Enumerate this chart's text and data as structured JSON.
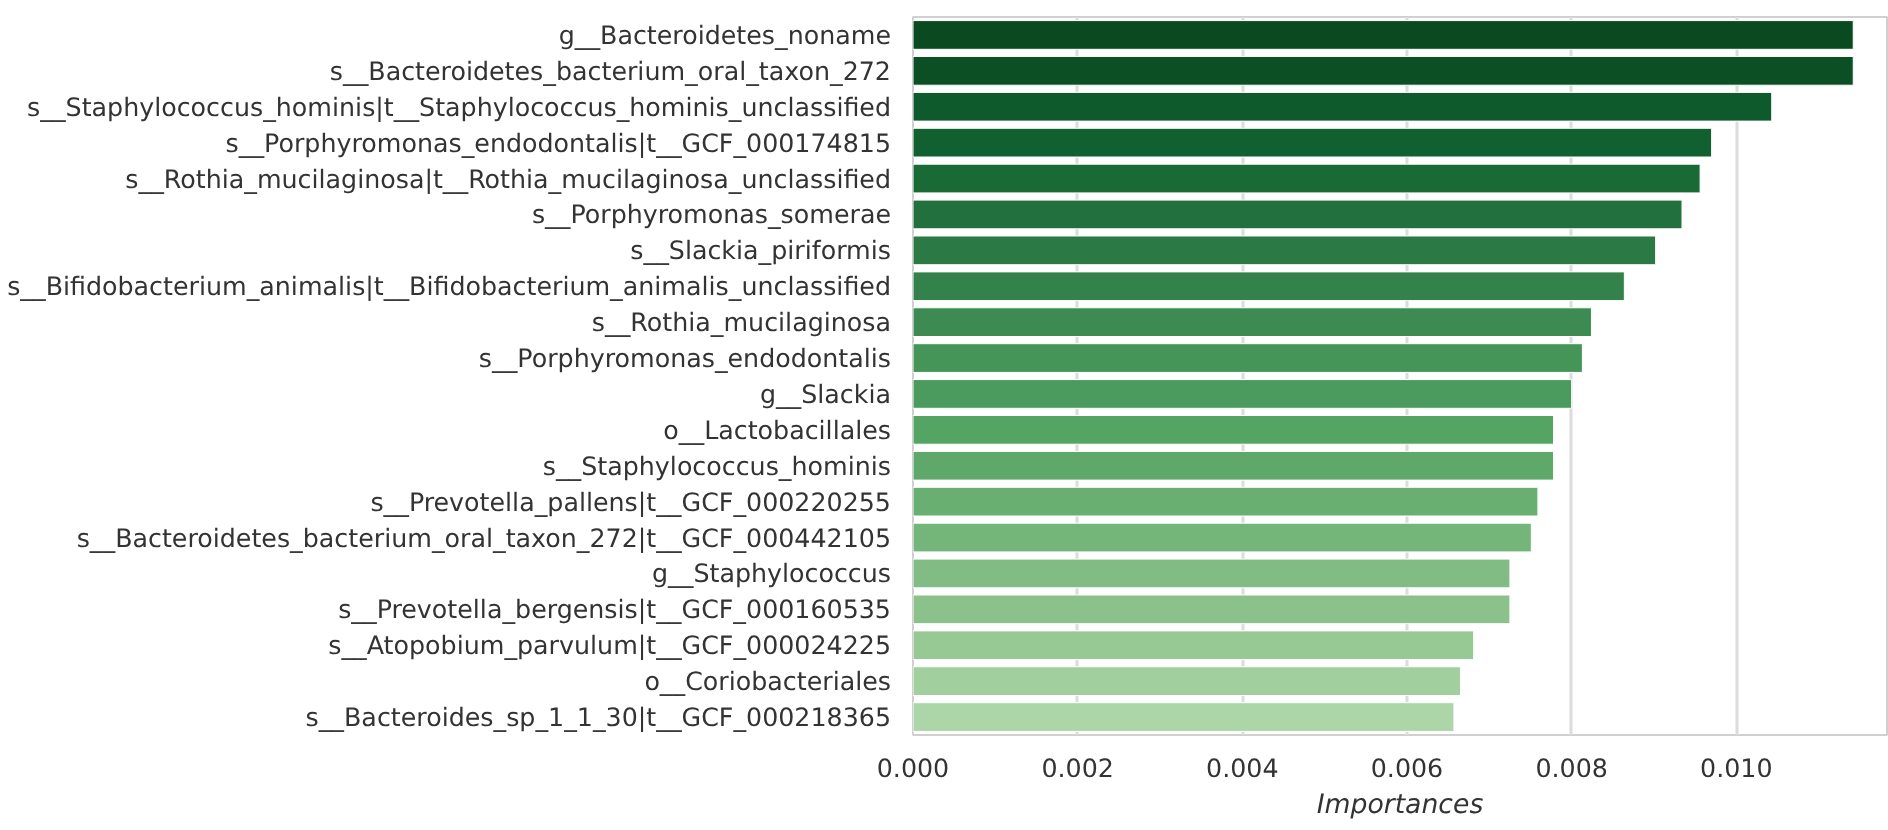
{
  "chart_data": {
    "type": "bar",
    "orientation": "horizontal",
    "xlabel": "Importances",
    "categories": [
      "g__Bacteroidetes_noname",
      "s__Bacteroidetes_bacterium_oral_taxon_272",
      "s__Staphylococcus_hominis|t__Staphylococcus_hominis_unclassified",
      "s__Porphyromonas_endodontalis|t__GCF_000174815",
      "s__Rothia_mucilaginosa|t__Rothia_mucilaginosa_unclassified",
      "s__Porphyromonas_somerae",
      "s__Slackia_piriformis",
      "s__Bifidobacterium_animalis|t__Bifidobacterium_animalis_unclassified",
      "s__Rothia_mucilaginosa",
      "s__Porphyromonas_endodontalis",
      "g__Slackia",
      "o__Lactobacillales",
      "s__Staphylococcus_hominis",
      "s__Prevotella_pallens|t__GCF_000220255",
      "s__Bacteroidetes_bacterium_oral_taxon_272|t__GCF_000442105",
      "g__Staphylococcus",
      "s__Prevotella_bergensis|t__GCF_000160535",
      "s__Atopobium_parvulum|t__GCF_000024225",
      "o__Coriobacteriales",
      "s__Bacteroides_sp_1_1_30|t__GCF_000218365"
    ],
    "values": [
      0.01142,
      0.01142,
      0.01043,
      0.0097,
      0.00956,
      0.00934,
      0.00902,
      0.00864,
      0.00824,
      0.00813,
      0.008,
      0.00778,
      0.00778,
      0.00759,
      0.00751,
      0.00725,
      0.00725,
      0.00681,
      0.00665,
      0.00657
    ],
    "colors": [
      "#0a4a21",
      "#0c4f24",
      "#0e5a2c",
      "#116130",
      "#1a6a36",
      "#22703d",
      "#2b7944",
      "#34824b",
      "#3d8a52",
      "#459458",
      "#4c9b5e",
      "#54a464",
      "#5ea96a",
      "#6aaf72",
      "#74b67a",
      "#80bc84",
      "#8bc28c",
      "#97c994",
      "#a2cf9e",
      "#acd6a7"
    ],
    "xlim": [
      0,
      0.01183
    ],
    "xticks": [
      {
        "value": 0,
        "label": "0.000"
      },
      {
        "value": 0.002,
        "label": "0.002"
      },
      {
        "value": 0.004,
        "label": "0.004"
      },
      {
        "value": 0.006,
        "label": "0.006"
      },
      {
        "value": 0.008,
        "label": "0.008"
      },
      {
        "value": 0.01,
        "label": "0.010"
      }
    ],
    "grid": "x"
  }
}
